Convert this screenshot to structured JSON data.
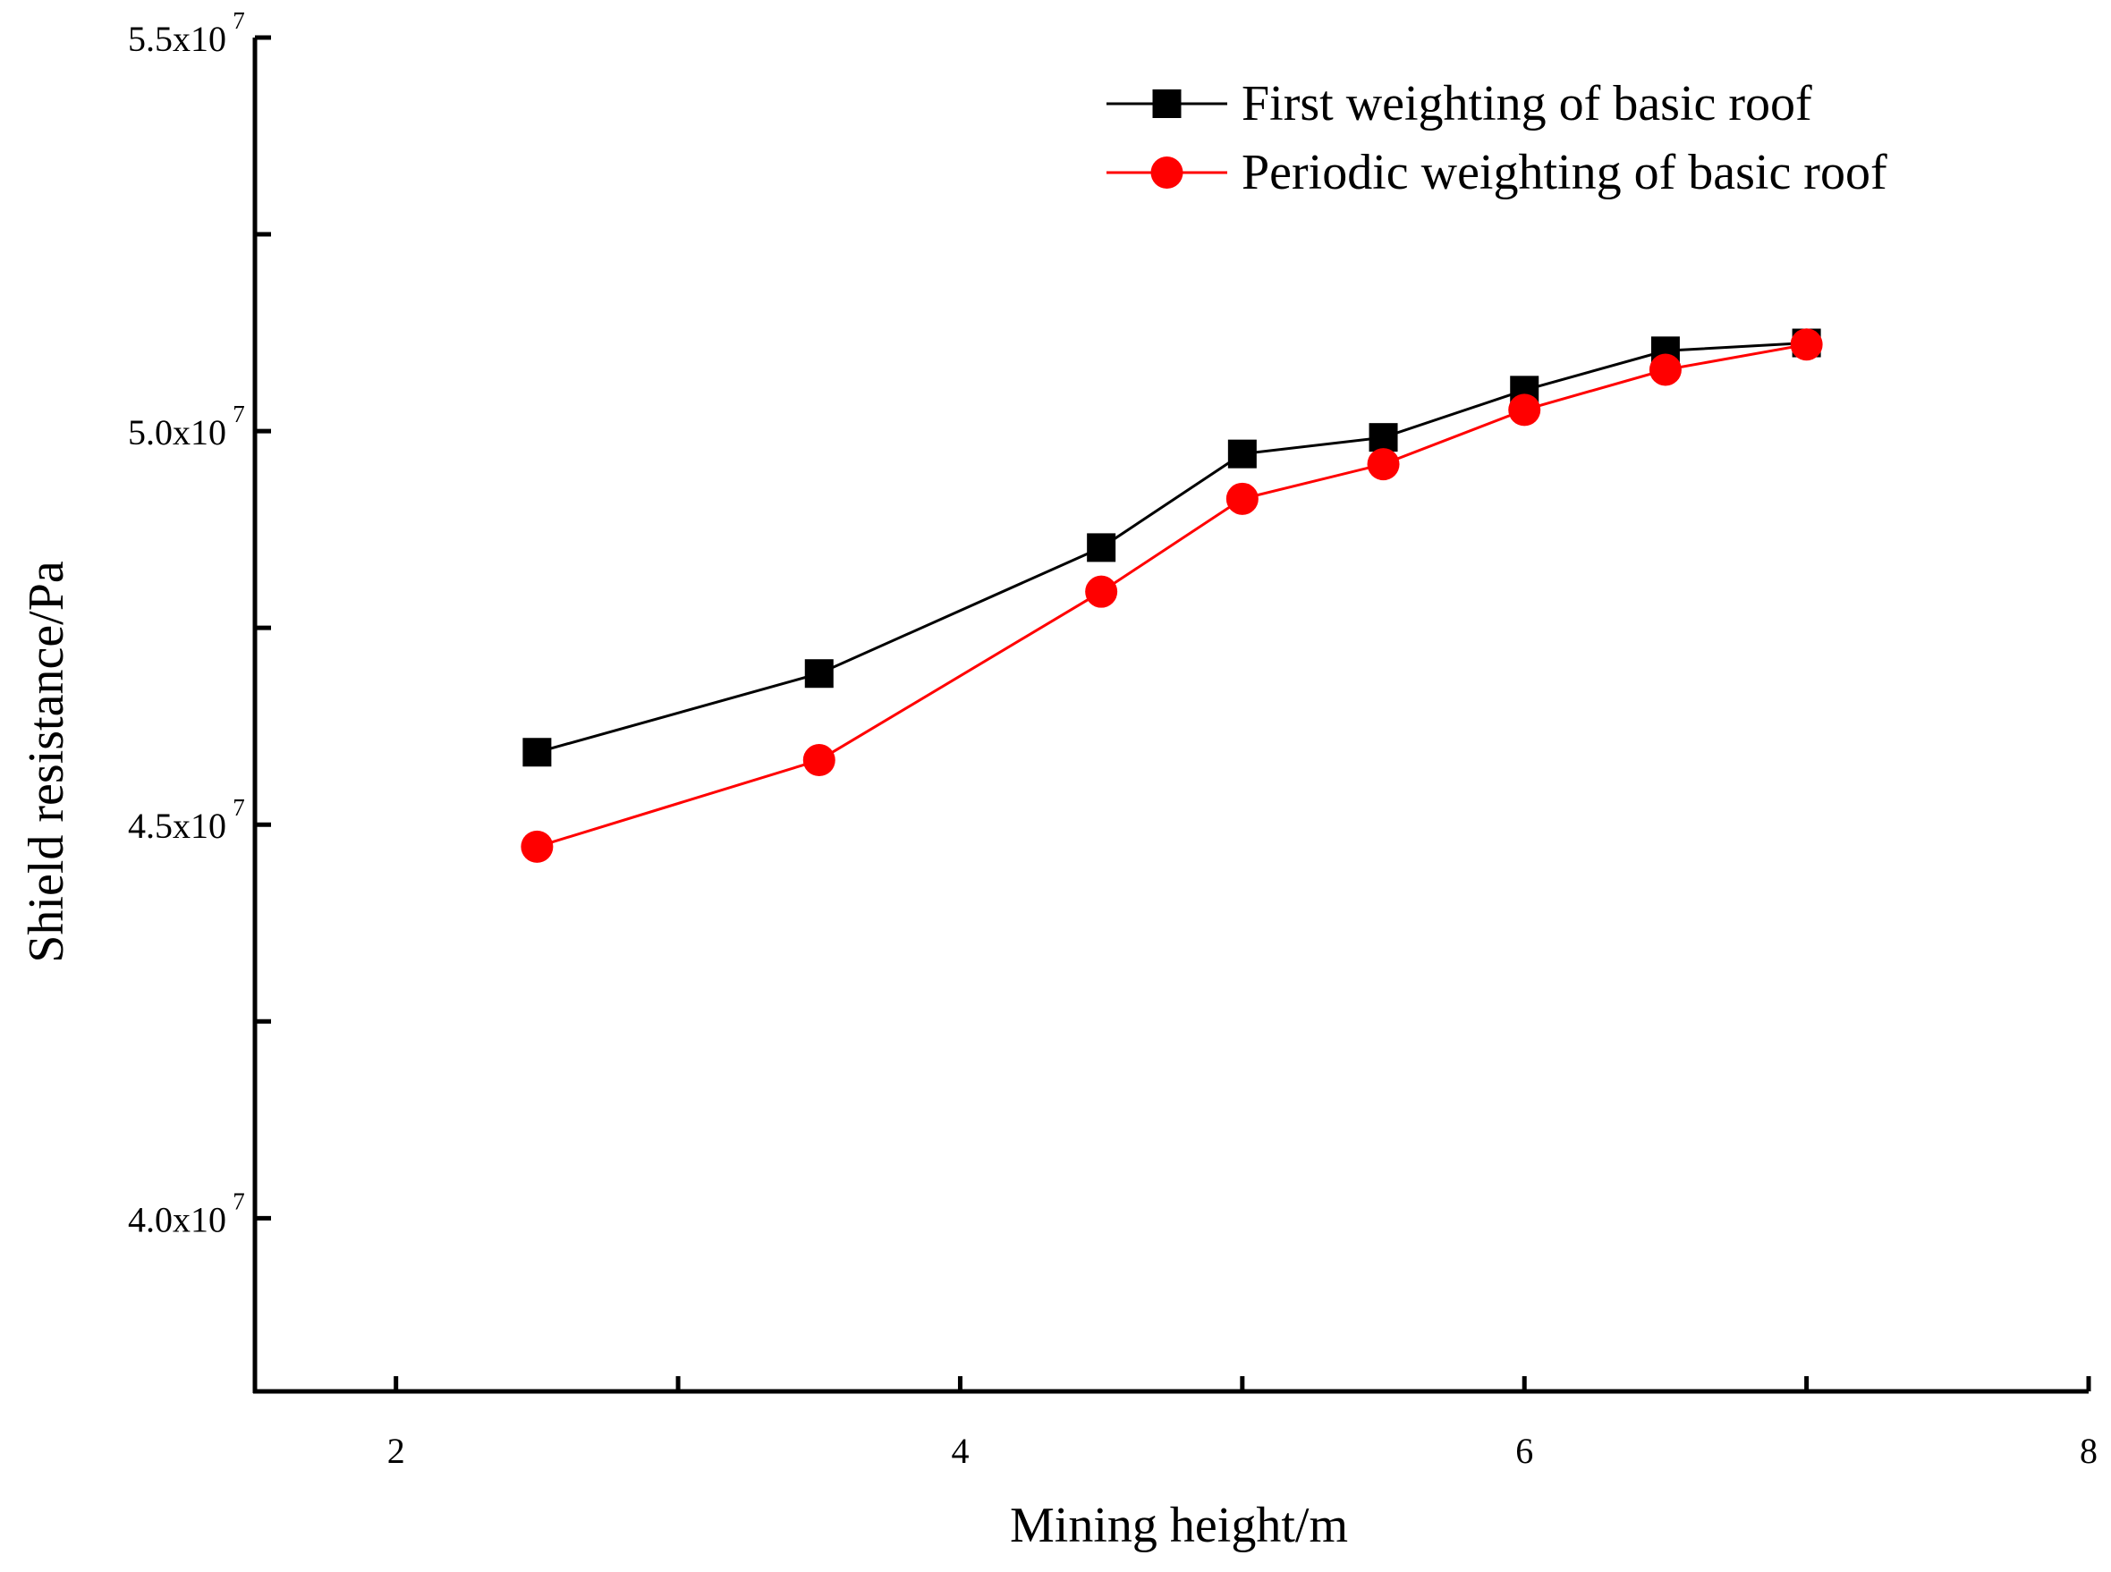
{
  "chart_data": {
    "type": "line",
    "title": "",
    "xlabel": "Mining height/m",
    "ylabel": "Shield resistance/Pa",
    "xlim": [
      1.5,
      8
    ],
    "ylim": [
      37800000,
      55000000
    ],
    "x_ticks": [
      2,
      3,
      4,
      5,
      6,
      7,
      8
    ],
    "x_tick_labels": [
      {
        "value": 2,
        "label": "2"
      },
      {
        "value": 4,
        "label": "4"
      },
      {
        "value": 6,
        "label": "6"
      },
      {
        "value": 8,
        "label": "8"
      }
    ],
    "y_ticks": [
      40000000,
      42500000,
      45000000,
      47500000,
      50000000,
      52500000,
      55000000
    ],
    "y_tick_labels": [
      {
        "value": 55000000,
        "mantissa": "5.5x10",
        "exponent": "7"
      },
      {
        "value": 50000000,
        "mantissa": "5.0x10",
        "exponent": "7"
      },
      {
        "value": 45000000,
        "mantissa": "4.5x10",
        "exponent": "7"
      },
      {
        "value": 40000000,
        "mantissa": "4.0x10",
        "exponent": "7"
      }
    ],
    "grid": false,
    "legend_position": "top-right",
    "x": [
      2.5,
      3.5,
      4.5,
      5.0,
      5.5,
      6.0,
      6.5,
      7.0
    ],
    "series": [
      {
        "name": "First weighting of basic roof",
        "color": "#000000",
        "marker": "square",
        "values": [
          45920000,
          46920000,
          48520000,
          49710000,
          49920000,
          50520000,
          51020000,
          51120000
        ]
      },
      {
        "name": "Periodic weighting of basic roof",
        "color": "#ff0000",
        "marker": "circle",
        "values": [
          44720000,
          45820000,
          47960000,
          49140000,
          49580000,
          50270000,
          50780000,
          51100000
        ]
      }
    ]
  }
}
